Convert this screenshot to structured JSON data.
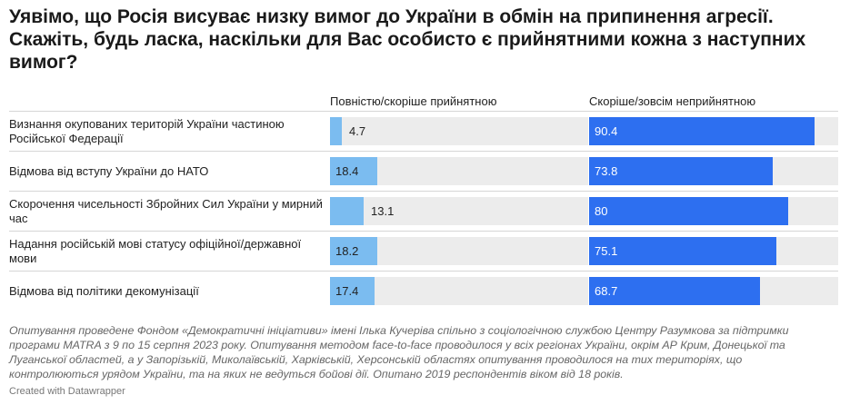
{
  "title": "Уявімо, що Росія висуває низку вимог до України в обмін на припинення агресії. Скажіть, будь ласка, наскільки для Вас особисто є прийнятними кожна з наступних вимог?",
  "chart_data": {
    "type": "bar",
    "categories": [
      "Визнання окупованих територій України частиною Російської Федерації",
      "Відмова від вступу України до НАТО",
      "Скорочення чисельності Збройних Сил України у мирний час",
      "Надання російській мові статусу офіційної/державної мови",
      "Відмова від політики декомунізації"
    ],
    "series": [
      {
        "name": "Повністю/скоріше прийнятною",
        "values": [
          4.7,
          18.4,
          13.1,
          18.2,
          17.4
        ],
        "color": "#7bbcf0"
      },
      {
        "name": "Скоріше/зовсім неприйнятною",
        "values": [
          90.4,
          73.8,
          80,
          75.1,
          68.7
        ],
        "color": "#2d6ff0"
      }
    ],
    "xlim": [
      0,
      100
    ],
    "grid": false,
    "title": "Уявімо, що Росія висуває низку вимог до України в обмін на припинення агресії. Скажіть, будь ласка, наскільки для Вас особисто є прийнятними кожна з наступних вимог?"
  },
  "note": "Опитування проведене Фондом «Демократичні ініціативи» імені Ілька Кучеріва спільно з соціологічною службою Центру Разумкова за підтримки програми MATRA з 9 по 15 серпня 2023 року. Опитування методом face-to-face проводилося у всіх регіонах України, окрім АР Крим, Донецької та Луганської областей, а у Запорізькій, Миколаївській, Харківській, Херсонській областях опитування проводилося на тих територіях, що контролюються урядом України, та на яких не ведуться бойові дії. Опитано 2019 респондентів віком від 18 років.",
  "credit": "Created with Datawrapper"
}
